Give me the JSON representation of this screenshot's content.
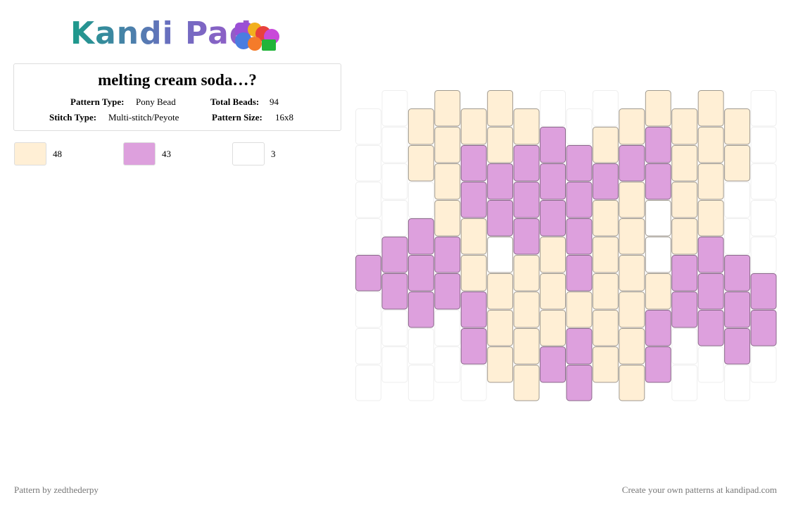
{
  "header": {
    "logo": "Kandi Pad"
  },
  "pattern": {
    "title": "melting cream soda…?",
    "info": [
      {
        "label": "Pattern Type:",
        "value": "Pony Bead"
      },
      {
        "label": "Total Beads:",
        "value": "94"
      },
      {
        "label": "Stitch Type:",
        "value": "Multi-stitch/Peyote"
      },
      {
        "label": "Pattern Size:",
        "value": "16x8"
      }
    ]
  },
  "colors": [
    {
      "color": "#ffefd5",
      "count": 48
    },
    {
      "color": "#dda0dd",
      "count": 43
    },
    {
      "color": "#ffffff",
      "count": 3
    }
  ],
  "footer": {
    "left": "Pattern by zedthederpy",
    "right": "Create your own patterns at kandipad.com"
  }
}
